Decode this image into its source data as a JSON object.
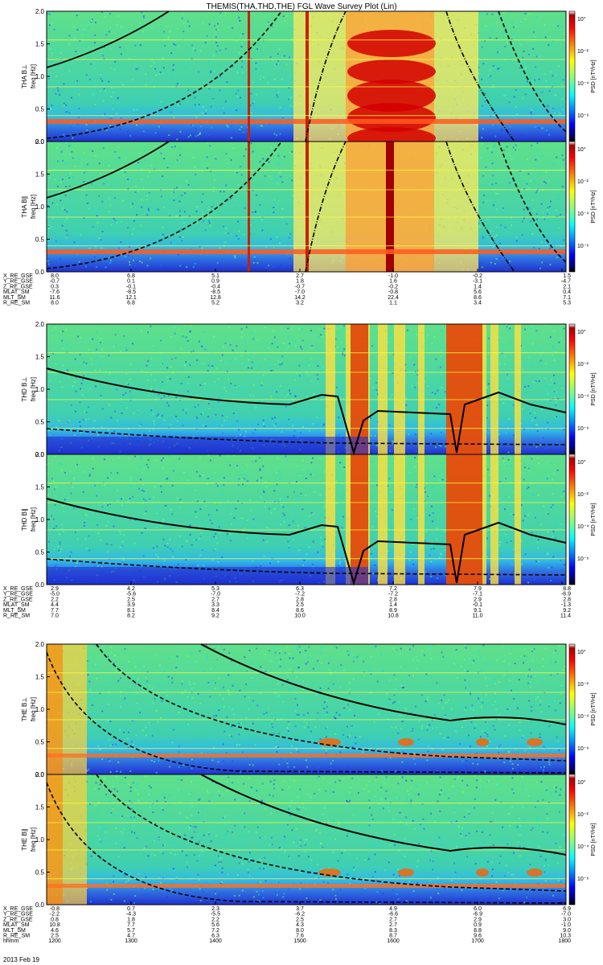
{
  "title": "THEMIS(THA,THD,THE) FGL Wave Survey Plot (Lin)",
  "date_label": "2013 Feb 19",
  "colorbar": {
    "label": "PSD [nT²/Hz]",
    "tick_labels": [
      "10°",
      "10⁻²",
      "10⁻⁴",
      "10⁻⁶"
    ],
    "colors": [
      "#ffffff",
      "#aa0000",
      "#ff0000",
      "#ff8000",
      "#ffff00",
      "#80ff80",
      "#00ffff",
      "#0080ff",
      "#0000ff",
      "#000080",
      "#000000"
    ]
  },
  "chart_data": [
    {
      "type": "heatmap",
      "probe": "THA",
      "panels": [
        {
          "ylabel": "THA B⊥",
          "unit": "freq [Hz]"
        },
        {
          "ylabel": "THA B∥",
          "unit": "freq [Hz]"
        }
      ],
      "ylim": [
        0,
        2.0
      ],
      "yticks": [
        "0.0",
        "0.5",
        "1.0",
        "1.5",
        "2.0"
      ],
      "orbit_rows": [
        {
          "label": "X_RE_GSE",
          "values": [
            "8.0",
            "6.8",
            "5.1",
            "2.7",
            "-1.0",
            "-0.2",
            "1.5"
          ]
        },
        {
          "label": "Y_RE_GSE",
          "values": [
            "-0.7",
            "0.1",
            "0.9",
            "1.8",
            "1.6",
            "-3.1",
            "-4.7"
          ]
        },
        {
          "label": "Z_RE_GSE",
          "values": [
            "0.3",
            "-0.1",
            "-0.4",
            "-0.7",
            "-0.2",
            "1.4",
            "2.1"
          ]
        },
        {
          "label": "MLAT_SM",
          "values": [
            "-7.6",
            "-8.5",
            "-8.5",
            "-7.0",
            "-0.8",
            "5.6",
            "0.4"
          ]
        },
        {
          "label": "MLT_SM",
          "values": [
            "11.6",
            "12.1",
            "12.8",
            "14.2",
            "22.4",
            "8.6",
            "7.1"
          ]
        },
        {
          "label": "R_RE_SM",
          "values": [
            "8.0",
            "6.8",
            "5.2",
            "3.2",
            "1.1",
            "3.4",
            "5.3"
          ]
        }
      ]
    },
    {
      "type": "heatmap",
      "probe": "THD",
      "panels": [
        {
          "ylabel": "THD B⊥",
          "unit": "freq [Hz]"
        },
        {
          "ylabel": "THD B∥",
          "unit": "freq [Hz]"
        }
      ],
      "ylim": [
        0,
        2.0
      ],
      "yticks": [
        "0.0",
        "0.5",
        "1.0",
        "1.5",
        "2.0"
      ],
      "orbit_rows": [
        {
          "label": "X_RE_GSE",
          "values": [
            "2.9",
            "4.2",
            "5.3",
            "6.3",
            "7.2",
            "7.9",
            "8.8"
          ]
        },
        {
          "label": "Y_RE_GSE",
          "values": [
            "-5.0",
            "-5.6",
            "-7.0",
            "-7.2",
            "-7.2",
            "-7.1",
            "-6.9"
          ]
        },
        {
          "label": "Z_RE_GSE",
          "values": [
            "2.2",
            "2.5",
            "2.7",
            "2.8",
            "2.8",
            "2.9",
            "2.8"
          ]
        },
        {
          "label": "MLAT_SM",
          "values": [
            "4.4",
            "3.9",
            "3.3",
            "2.5",
            "1.4",
            "-0.1",
            "-1.3"
          ]
        },
        {
          "label": "MLT_SM",
          "values": [
            "7.7",
            "8.1",
            "8.4",
            "8.6",
            "8.9",
            "9.1",
            "9.2"
          ]
        },
        {
          "label": "R_RE_SM",
          "values": [
            "7.0",
            "8.2",
            "9.2",
            "10.0",
            "10.8",
            "11.0",
            "11.4"
          ]
        }
      ]
    },
    {
      "type": "heatmap",
      "probe": "THE",
      "panels": [
        {
          "ylabel": "THE B⊥",
          "unit": "freq [Hz]"
        },
        {
          "ylabel": "THE B∥",
          "unit": "freq [Hz]"
        }
      ],
      "ylim": [
        0,
        2.0
      ],
      "yticks": [
        "0.0",
        "0.5",
        "1.0",
        "1.5",
        "2.0"
      ],
      "orbit_rows": [
        {
          "label": "X_RE_GSE",
          "values": [
            "-0.8",
            "0.7",
            "2.3",
            "3.7",
            "4.9",
            "6.0",
            "6.9"
          ]
        },
        {
          "label": "Y_RE_GSE",
          "values": [
            "-2.2",
            "-4.3",
            "-5.5",
            "-6.2",
            "-6.6",
            "-6.9",
            "-7.0"
          ]
        },
        {
          "label": "Z_RE_GSE",
          "values": [
            "0.8",
            "1.8",
            "2.2",
            "2.5",
            "2.7",
            "2.9",
            "3.0"
          ]
        },
        {
          "label": "MLAT_SM",
          "values": [
            "10.8",
            "7.7",
            "5.6",
            "4.3",
            "2.7",
            "0.9",
            "-1.0"
          ]
        },
        {
          "label": "MLT_SM",
          "values": [
            "4.6",
            "5.7",
            "7.2",
            "8.0",
            "8.3",
            "8.8",
            "9.0"
          ]
        },
        {
          "label": "R_RE_SM",
          "values": [
            "2.5",
            "4.7",
            "6.3",
            "7.6",
            "8.7",
            "9.6",
            "10.3"
          ]
        },
        {
          "label": "hhmm",
          "values": [
            "1200",
            "1300",
            "1400",
            "1500",
            "1600",
            "1700",
            "1800"
          ]
        }
      ]
    }
  ]
}
